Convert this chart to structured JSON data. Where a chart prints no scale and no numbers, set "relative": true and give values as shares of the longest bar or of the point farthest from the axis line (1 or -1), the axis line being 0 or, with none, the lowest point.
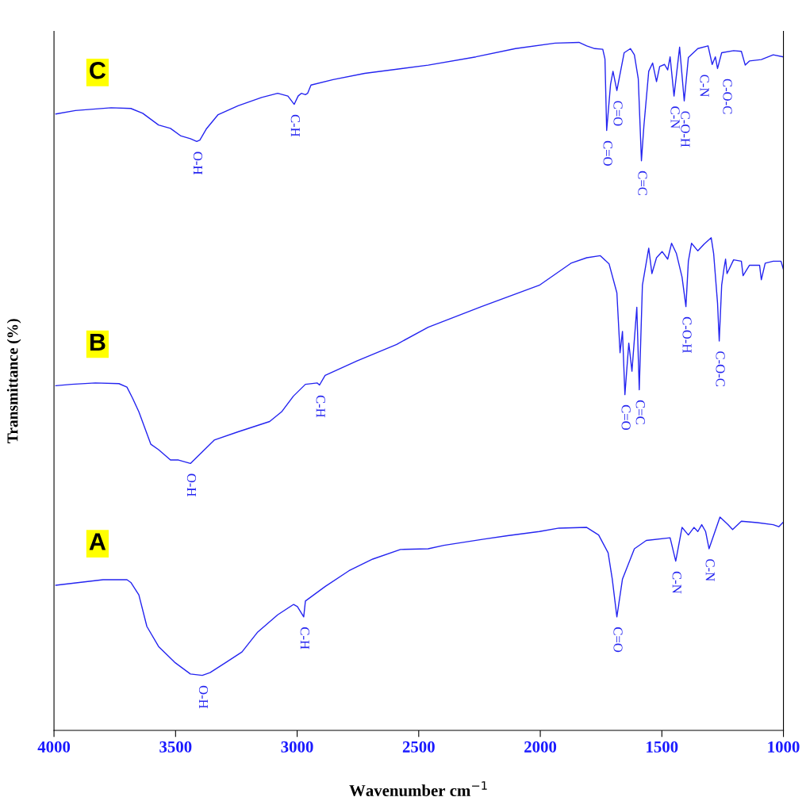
{
  "chart_data": {
    "type": "line",
    "relative": true,
    "xlabel": "Wavenumber cm$^{−1}$",
    "ylabel": "Transmittance (%)",
    "xlim": [
      4000,
      1000
    ],
    "xticks": [
      4000,
      3500,
      3000,
      2500,
      2000,
      1500,
      1000
    ],
    "tick_labels": "x",
    "grid": false,
    "legend": false,
    "marker": "none",
    "line_style": "solid",
    "series": [
      {
        "name": "C",
        "color": "#2424f0",
        "x": [
          3993,
          3912,
          3765,
          3684,
          3635,
          3570,
          3521,
          3478,
          3439,
          3413,
          3400,
          3374,
          3325,
          3243,
          3146,
          3080,
          3038,
          3012,
          2996,
          2983,
          2966,
          2957,
          2943,
          2852,
          2722,
          2461,
          2265,
          2102,
          1939,
          1841,
          1809,
          1776,
          1743,
          1734,
          1727,
          1711,
          1701,
          1685,
          1655,
          1629,
          1613,
          1597,
          1584,
          1574,
          1554,
          1538,
          1522,
          1509,
          1489,
          1476,
          1466,
          1450,
          1427,
          1408,
          1391,
          1352,
          1310,
          1293,
          1280,
          1271,
          1254,
          1205,
          1173,
          1157,
          1140,
          1091,
          1042,
          1000
        ],
        "values": [
          0.896,
          0.901,
          0.905,
          0.904,
          0.897,
          0.88,
          0.875,
          0.864,
          0.86,
          0.856,
          0.858,
          0.874,
          0.895,
          0.908,
          0.92,
          0.926,
          0.922,
          0.91,
          0.922,
          0.926,
          0.924,
          0.926,
          0.938,
          0.946,
          0.955,
          0.967,
          0.979,
          0.991,
          0.999,
          1.0,
          0.995,
          0.991,
          0.99,
          0.976,
          0.872,
          0.939,
          0.958,
          0.93,
          0.985,
          0.991,
          0.982,
          0.947,
          0.828,
          0.878,
          0.958,
          0.97,
          0.943,
          0.965,
          0.968,
          0.96,
          0.979,
          0.922,
          0.993,
          0.915,
          0.978,
          0.991,
          0.995,
          0.968,
          0.979,
          0.962,
          0.985,
          0.988,
          0.987,
          0.967,
          0.973,
          0.975,
          0.982,
          0.979
        ]
      },
      {
        "name": "B",
        "color": "#2424f0",
        "x": [
          3993,
          3928,
          3830,
          3733,
          3700,
          3677,
          3651,
          3602,
          3570,
          3521,
          3488,
          3439,
          3390,
          3341,
          3243,
          3113,
          3064,
          3015,
          2966,
          2917,
          2908,
          2885,
          2754,
          2591,
          2461,
          2242,
          2004,
          1874,
          1809,
          1753,
          1717,
          1685,
          1672,
          1662,
          1652,
          1636,
          1623,
          1603,
          1593,
          1580,
          1554,
          1541,
          1522,
          1499,
          1476,
          1460,
          1440,
          1417,
          1401,
          1391,
          1378,
          1352,
          1326,
          1297,
          1287,
          1271,
          1264,
          1254,
          1245,
          1238,
          1232,
          1205,
          1173,
          1166,
          1140,
          1098,
          1091,
          1075,
          1042,
          1010,
          1000
        ],
        "values": [
          0.501,
          0.503,
          0.505,
          0.504,
          0.499,
          0.483,
          0.463,
          0.416,
          0.408,
          0.393,
          0.393,
          0.388,
          0.405,
          0.422,
          0.434,
          0.449,
          0.463,
          0.486,
          0.503,
          0.505,
          0.502,
          0.516,
          0.537,
          0.561,
          0.586,
          0.616,
          0.647,
          0.679,
          0.687,
          0.69,
          0.678,
          0.636,
          0.549,
          0.58,
          0.488,
          0.563,
          0.522,
          0.615,
          0.495,
          0.647,
          0.701,
          0.664,
          0.687,
          0.696,
          0.685,
          0.708,
          0.693,
          0.659,
          0.616,
          0.682,
          0.708,
          0.697,
          0.707,
          0.716,
          0.693,
          0.621,
          0.566,
          0.647,
          0.67,
          0.685,
          0.664,
          0.684,
          0.682,
          0.661,
          0.676,
          0.676,
          0.655,
          0.679,
          0.682,
          0.682,
          0.67
        ]
      },
      {
        "name": "A",
        "color": "#2424f0",
        "x": [
          3993,
          3896,
          3798,
          3700,
          3684,
          3651,
          3618,
          3570,
          3504,
          3439,
          3390,
          3358,
          3292,
          3227,
          3162,
          3080,
          3015,
          2999,
          2973,
          2966,
          2885,
          2787,
          2689,
          2575,
          2461,
          2396,
          2233,
          2135,
          2004,
          1923,
          1809,
          1760,
          1721,
          1704,
          1685,
          1662,
          1613,
          1564,
          1466,
          1443,
          1417,
          1391,
          1368,
          1352,
          1336,
          1320,
          1306,
          1261,
          1228,
          1209,
          1173,
          1108,
          1042,
          1019,
          1000
        ],
        "values": [
          0.211,
          0.215,
          0.219,
          0.219,
          0.215,
          0.197,
          0.151,
          0.122,
          0.099,
          0.082,
          0.08,
          0.084,
          0.099,
          0.114,
          0.143,
          0.168,
          0.183,
          0.18,
          0.165,
          0.188,
          0.209,
          0.232,
          0.249,
          0.263,
          0.264,
          0.269,
          0.278,
          0.283,
          0.289,
          0.294,
          0.295,
          0.284,
          0.258,
          0.22,
          0.165,
          0.22,
          0.264,
          0.276,
          0.28,
          0.246,
          0.295,
          0.284,
          0.295,
          0.289,
          0.299,
          0.289,
          0.264,
          0.31,
          0.299,
          0.292,
          0.304,
          0.302,
          0.299,
          0.296,
          0.303
        ]
      }
    ],
    "annotations": [
      {
        "text": "O-H",
        "x": 3413,
        "y": 0.856
      },
      {
        "text": "C-H",
        "x": 3012,
        "y": 0.91
      },
      {
        "text": "C=O",
        "x": 1727,
        "y": 0.872
      },
      {
        "text": "C=O",
        "x": 1685,
        "y": 0.93
      },
      {
        "text": "C=C",
        "x": 1584,
        "y": 0.828
      },
      {
        "text": "C-N",
        "x": 1450,
        "y": 0.922
      },
      {
        "text": "C-O-H",
        "x": 1408,
        "y": 0.915
      },
      {
        "text": "C-N",
        "x": 1293,
        "y": 0.968
      },
      {
        "text": "C-O-C",
        "x": 1271,
        "y": 0.962
      },
      {
        "text": "O-H",
        "x": 3439,
        "y": 0.388
      },
      {
        "text": "C-H",
        "x": 2908,
        "y": 0.502
      },
      {
        "text": "C=O",
        "x": 1652,
        "y": 0.488
      },
      {
        "text": "C=C",
        "x": 1593,
        "y": 0.495
      },
      {
        "text": "C-O-H",
        "x": 1401,
        "y": 0.616
      },
      {
        "text": "C-O-C",
        "x": 1264,
        "y": 0.566
      },
      {
        "text": "O-H",
        "x": 3390,
        "y": 0.08
      },
      {
        "text": "C-H",
        "x": 2973,
        "y": 0.165
      },
      {
        "text": "C=O",
        "x": 1685,
        "y": 0.165
      },
      {
        "text": "C-N",
        "x": 1443,
        "y": 0.246
      },
      {
        "text": "C-N",
        "x": 1306,
        "y": 0.264
      }
    ]
  }
}
